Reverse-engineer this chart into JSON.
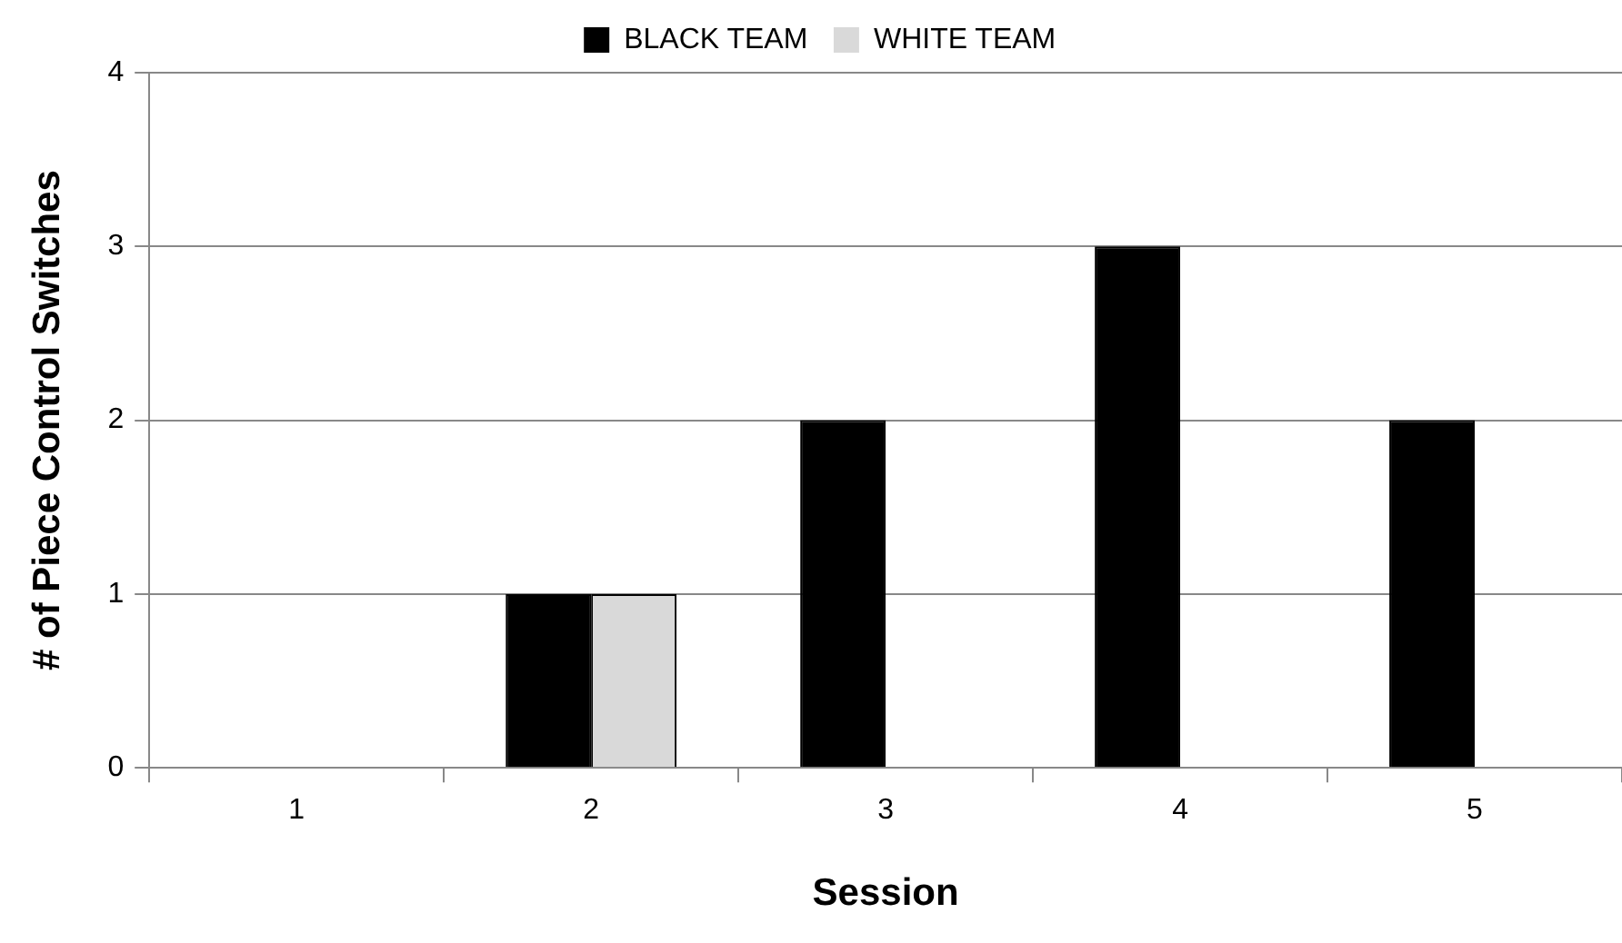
{
  "chart_data": {
    "type": "bar",
    "xlabel": "Session",
    "ylabel": "# of Piece Control Switches",
    "categories": [
      "1",
      "2",
      "3",
      "4",
      "5"
    ],
    "series": [
      {
        "name": "BLACK TEAM",
        "color": "#000000",
        "values": [
          0,
          1,
          2,
          3,
          2
        ]
      },
      {
        "name": "WHITE TEAM",
        "color": "#d9d9d9",
        "values": [
          0,
          1,
          0,
          0,
          0
        ]
      }
    ],
    "ylim": [
      0,
      4
    ],
    "yticks": [
      0,
      1,
      2,
      3,
      4
    ],
    "grid": "y",
    "legend": "top"
  }
}
